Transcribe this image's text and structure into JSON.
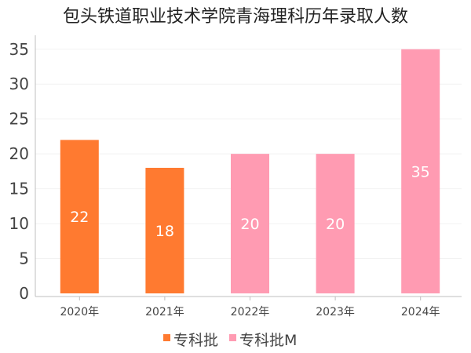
{
  "chart_data": {
    "type": "bar",
    "title": "包头铁道职业技术学院青海理科历年录取人数",
    "categories": [
      "2020年",
      "2021年",
      "2022年",
      "2023年",
      "2024年"
    ],
    "values": [
      22,
      18,
      20,
      20,
      35
    ],
    "series_index": [
      0,
      0,
      1,
      1,
      1
    ],
    "series": [
      {
        "name": "专科批",
        "color": "#ff7a30"
      },
      {
        "name": "专科批M",
        "color": "#ff9bb2"
      }
    ],
    "ylim": [
      0,
      37
    ],
    "yticks": [
      0,
      5,
      10,
      15,
      20,
      25,
      30,
      35
    ],
    "grid": true,
    "legend": "bottom-center"
  }
}
